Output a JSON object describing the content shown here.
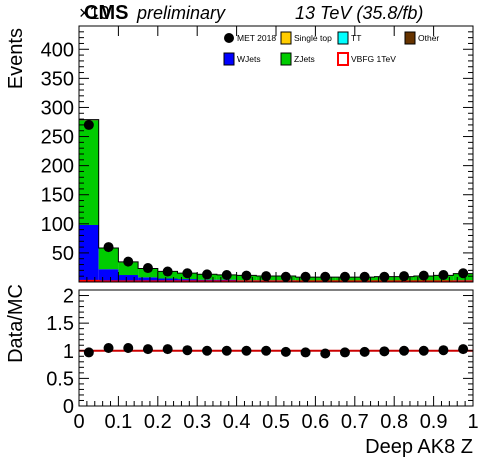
{
  "header": {
    "cms": "CMS",
    "preliminary": "preliminary",
    "lumi": "13 TeV (35.8/fb)",
    "scale_marker": "×10"
  },
  "legend": [
    {
      "label": "MET 2018",
      "kind": "marker",
      "color": "#000000"
    },
    {
      "label": "Single top",
      "kind": "fill",
      "color": "#ffcc00"
    },
    {
      "label": "TT",
      "kind": "fill",
      "color": "#00ffff"
    },
    {
      "label": "Other",
      "kind": "fill",
      "color": "#663300"
    },
    {
      "label": "WJets",
      "kind": "fill",
      "color": "#0000ff"
    },
    {
      "label": "ZJets",
      "kind": "fill",
      "color": "#00cc00"
    },
    {
      "label": "VBFG 1TeV",
      "kind": "line",
      "color": "#ff0000"
    }
  ],
  "chart_data": [
    {
      "type": "bar",
      "stacked": true,
      "ylabel": "Events",
      "ylim": [
        0,
        440
      ],
      "yticks": [
        50,
        100,
        150,
        200,
        250,
        300,
        350,
        400
      ],
      "bin_edges": [
        0,
        0.05,
        0.1,
        0.15,
        0.2,
        0.25,
        0.3,
        0.35,
        0.4,
        0.45,
        0.5,
        0.55,
        0.6,
        0.65,
        0.7,
        0.75,
        0.8,
        0.85,
        0.9,
        0.95,
        1.0
      ],
      "series": [
        {
          "name": "WJets",
          "color": "#0000ff",
          "values": [
            98,
            22,
            12,
            8,
            6,
            5,
            4,
            4,
            3,
            3,
            3,
            2,
            2,
            2,
            2,
            2,
            2,
            2,
            2,
            3
          ]
        },
        {
          "name": "ZJets",
          "color": "#00cc00",
          "values": [
            180,
            36,
            22,
            15,
            12,
            10,
            9,
            8,
            8,
            7,
            7,
            6,
            6,
            6,
            6,
            7,
            7,
            8,
            9,
            11
          ]
        },
        {
          "name": "Other",
          "color": "#663300",
          "values": [
            1,
            0.5,
            0.5,
            0.3,
            0.3,
            0.3,
            0.3,
            0.3,
            0.3,
            0.3,
            0.3,
            0.3,
            0.3,
            0.3,
            0.3,
            0.3,
            0.3,
            0.3,
            0.3,
            0.3
          ]
        }
      ],
      "signal": {
        "name": "VBFG 1TeV",
        "color": "#ff0000",
        "values": [
          2,
          1,
          1,
          1,
          1,
          1,
          1,
          1,
          1,
          1,
          1,
          1,
          1,
          1,
          1,
          1,
          1,
          1,
          1,
          1
        ]
      },
      "data_points": {
        "name": "MET 2018",
        "x": [
          0.025,
          0.075,
          0.125,
          0.175,
          0.225,
          0.275,
          0.325,
          0.375,
          0.425,
          0.475,
          0.525,
          0.575,
          0.625,
          0.675,
          0.725,
          0.775,
          0.825,
          0.875,
          0.925,
          0.975
        ],
        "y": [
          270,
          60,
          35,
          24,
          18,
          15,
          13,
          12,
          11,
          10,
          9,
          9,
          9,
          9,
          9,
          9,
          10,
          11,
          12,
          15
        ]
      }
    },
    {
      "type": "scatter",
      "ylabel": "Data/MC",
      "xlabel": "Deep AK8 Z",
      "ylim": [
        0,
        2.1
      ],
      "yticks": [
        0,
        0.5,
        1,
        1.5,
        2
      ],
      "xlim": [
        0,
        1
      ],
      "xticks": [
        0,
        0.1,
        0.2,
        0.3,
        0.4,
        0.5,
        0.6,
        0.7,
        0.8,
        0.9,
        1
      ],
      "reference_line": 1,
      "x": [
        0.025,
        0.075,
        0.125,
        0.175,
        0.225,
        0.275,
        0.325,
        0.375,
        0.425,
        0.475,
        0.525,
        0.575,
        0.625,
        0.675,
        0.725,
        0.775,
        0.825,
        0.875,
        0.925,
        0.975
      ],
      "y": [
        0.97,
        1.05,
        1.05,
        1.03,
        1.03,
        1.01,
        1.0,
        1.0,
        1.0,
        1.0,
        0.98,
        0.97,
        0.95,
        0.97,
        0.98,
        0.99,
        1.0,
        1.0,
        1.01,
        1.03
      ]
    }
  ]
}
